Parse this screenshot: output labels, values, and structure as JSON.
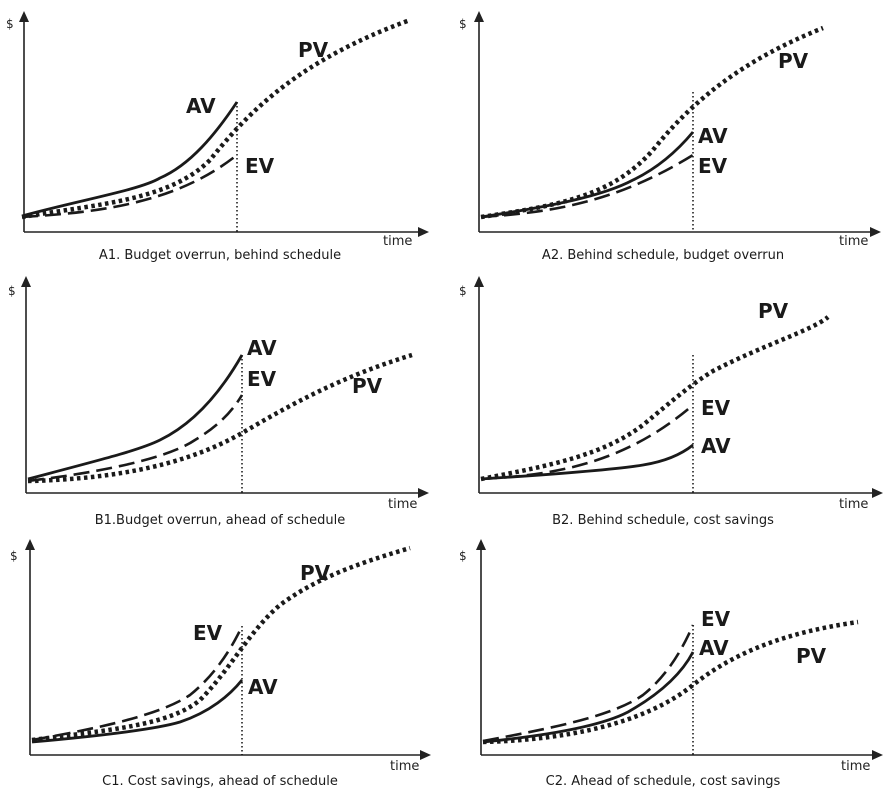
{
  "panels": [
    {
      "id": "A1",
      "caption": "A1. Budget overrun, behind schedule",
      "y_symbol": "$",
      "x_label": "time",
      "labels": {
        "pv": "PV",
        "ev": "EV",
        "av": "AV"
      }
    },
    {
      "id": "A2",
      "caption": "A2. Behind schedule, budget overrun",
      "y_symbol": "$",
      "x_label": "time",
      "labels": {
        "pv": "PV",
        "ev": "EV",
        "av": "AV"
      }
    },
    {
      "id": "B1",
      "caption": "B1.Budget overrun, ahead of schedule",
      "y_symbol": "$",
      "x_label": "time",
      "labels": {
        "pv": "PV",
        "ev": "EV",
        "av": "AV"
      }
    },
    {
      "id": "B2",
      "caption": "B2. Behind schedule, cost savings",
      "y_symbol": "$",
      "x_label": "time",
      "labels": {
        "pv": "PV",
        "ev": "EV",
        "av": "AV"
      }
    },
    {
      "id": "C1",
      "caption": "C1. Cost savings, ahead of schedule",
      "y_symbol": "$",
      "x_label": "time",
      "labels": {
        "pv": "PV",
        "ev": "EV",
        "av": "AV"
      }
    },
    {
      "id": "C2",
      "caption": "C2. Ahead of schedule, cost savings",
      "y_symbol": "$",
      "x_label": "time",
      "labels": {
        "pv": "PV",
        "ev": "EV",
        "av": "AV"
      }
    }
  ]
}
